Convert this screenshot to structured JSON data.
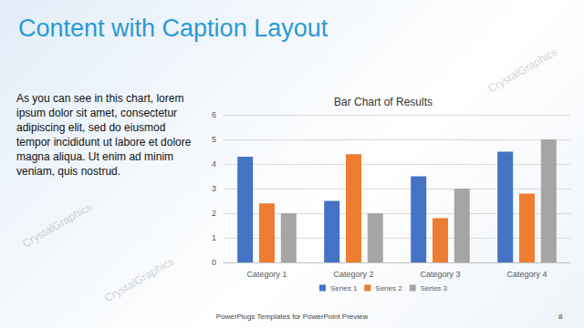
{
  "slide": {
    "title": "Content with Caption Layout",
    "caption": "As you can see in this chart, lorem ipsum dolor sit amet, consectetur adipiscing elit, sed do eiusmod tempor incididunt ut labore et dolore magna aliqua. Ut enim ad minim veniam, quis nostrud.",
    "footer": "PowerPlugs Templates for PowerPoint Preview",
    "page_number": 8,
    "watermark": "CrystalGraphics"
  },
  "chart_data": {
    "type": "bar",
    "title": "Bar Chart of Results",
    "categories": [
      "Category 1",
      "Category 2",
      "Category 3",
      "Category 4"
    ],
    "series": [
      {
        "name": "Series 1",
        "color": "#4472c4",
        "values": [
          4.3,
          2.5,
          3.5,
          4.5
        ]
      },
      {
        "name": "Series 2",
        "color": "#ed7d31",
        "values": [
          2.4,
          4.4,
          1.8,
          2.8
        ]
      },
      {
        "name": "Series 3",
        "color": "#a5a5a5",
        "values": [
          2,
          2,
          3,
          5
        ]
      }
    ],
    "ylim": [
      0,
      6
    ],
    "yticks": [
      0,
      1,
      2,
      3,
      4,
      5,
      6
    ],
    "grid": true,
    "legend": "bottom"
  }
}
